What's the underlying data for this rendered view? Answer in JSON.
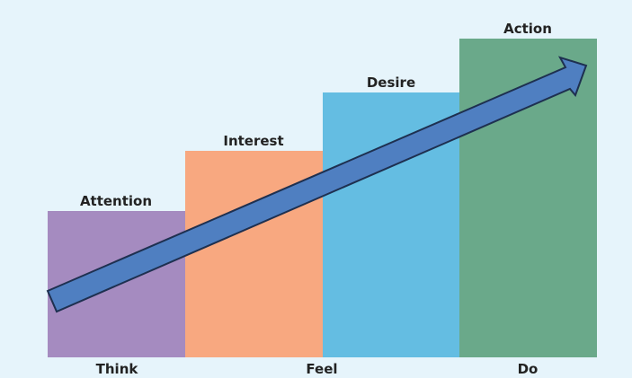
{
  "stages": [
    {
      "label": "Attention"
    },
    {
      "label": "Interest"
    },
    {
      "label": "Desire"
    },
    {
      "label": "Action"
    }
  ],
  "phases": [
    {
      "label": "Think"
    },
    {
      "label": "Feel"
    },
    {
      "label": "Do"
    }
  ]
}
